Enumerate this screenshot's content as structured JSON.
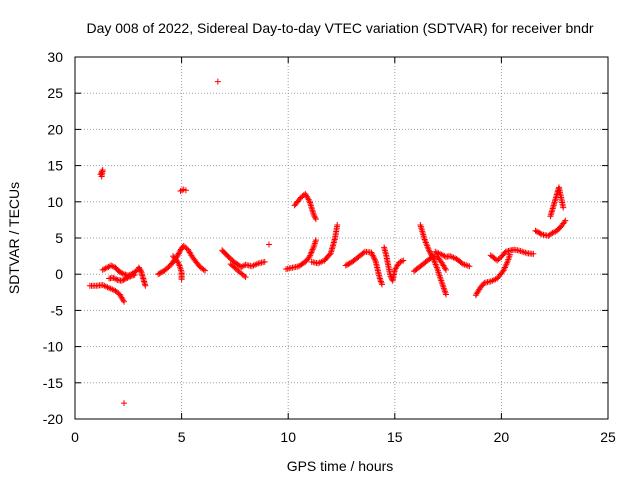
{
  "chart_data": {
    "type": "scatter",
    "title": "Day 008 of 2022, Sidereal Day-to-day VTEC variation (SDTVAR) for receiver bndr",
    "xlabel": "GPS time / hours",
    "ylabel": "SDTVAR / TECUs",
    "xlim": [
      0,
      25
    ],
    "ylim": [
      -20,
      30
    ],
    "xticks": [
      0,
      5,
      10,
      15,
      20,
      25
    ],
    "yticks": [
      -20,
      -15,
      -10,
      -5,
      0,
      5,
      10,
      15,
      20,
      25,
      30
    ],
    "grid": true,
    "marker": "+",
    "color": "#ff0000",
    "segments": [
      {
        "points": [
          [
            0.7,
            -1.6
          ],
          [
            1.0,
            -1.6
          ],
          [
            1.3,
            -1.5
          ],
          [
            1.6,
            -1.9
          ],
          [
            1.9,
            -2.3
          ],
          [
            2.1,
            -2.8
          ],
          [
            2.3,
            -3.8
          ]
        ]
      },
      {
        "points": [
          [
            1.2,
            13.8
          ],
          [
            1.3,
            14.4
          ],
          [
            1.25,
            13.5
          ]
        ]
      },
      {
        "points": [
          [
            1.3,
            0.6
          ],
          [
            1.5,
            0.9
          ],
          [
            1.7,
            1.2
          ],
          [
            1.9,
            0.9
          ],
          [
            2.1,
            0.3
          ],
          [
            2.3,
            0.0
          ],
          [
            2.5,
            -0.2
          ],
          [
            2.7,
            0.1
          ],
          [
            2.9,
            0.5
          ],
          [
            3.0,
            0.9
          ],
          [
            3.1,
            0.4
          ],
          [
            3.2,
            -0.6
          ],
          [
            3.3,
            -1.6
          ]
        ]
      },
      {
        "points": [
          [
            1.6,
            -0.6
          ],
          [
            1.8,
            -0.5
          ],
          [
            2.0,
            -0.8
          ],
          [
            2.2,
            -0.9
          ],
          [
            2.4,
            -0.6
          ],
          [
            2.6,
            -0.3
          ],
          [
            2.8,
            -0.1
          ]
        ]
      },
      {
        "points": [
          [
            2.3,
            -17.8
          ]
        ]
      },
      {
        "points": [
          [
            3.9,
            0.0
          ],
          [
            4.2,
            0.5
          ],
          [
            4.5,
            1.3
          ],
          [
            4.8,
            2.5
          ],
          [
            5.0,
            3.6
          ],
          [
            5.1,
            3.9
          ],
          [
            5.3,
            3.4
          ],
          [
            5.5,
            2.4
          ],
          [
            5.7,
            1.6
          ],
          [
            5.9,
            0.9
          ],
          [
            6.1,
            0.5
          ]
        ]
      },
      {
        "points": [
          [
            4.6,
            2.5
          ],
          [
            4.8,
            1.8
          ],
          [
            4.9,
            1.2
          ],
          [
            5.0,
            0.3
          ],
          [
            5.0,
            -0.7
          ]
        ]
      },
      {
        "points": [
          [
            4.95,
            11.5
          ],
          [
            5.1,
            11.7
          ],
          [
            5.2,
            11.6
          ]
        ]
      },
      {
        "points": [
          [
            6.7,
            26.6
          ]
        ]
      },
      {
        "points": [
          [
            6.9,
            3.3
          ],
          [
            7.2,
            2.4
          ],
          [
            7.5,
            1.6
          ],
          [
            7.8,
            1.0
          ],
          [
            8.0,
            1.3
          ],
          [
            8.3,
            1.1
          ],
          [
            8.6,
            1.5
          ],
          [
            8.9,
            1.7
          ]
        ]
      },
      {
        "points": [
          [
            7.3,
            1.4
          ],
          [
            7.6,
            0.6
          ],
          [
            7.8,
            0.1
          ],
          [
            8.0,
            -0.4
          ]
        ]
      },
      {
        "points": [
          [
            9.1,
            4.1
          ]
        ]
      },
      {
        "points": [
          [
            9.9,
            0.7
          ],
          [
            10.2,
            0.9
          ],
          [
            10.5,
            1.1
          ],
          [
            10.8,
            1.7
          ],
          [
            11.0,
            2.4
          ],
          [
            11.2,
            3.8
          ],
          [
            11.3,
            4.7
          ]
        ]
      },
      {
        "points": [
          [
            10.3,
            9.5
          ],
          [
            10.6,
            10.6
          ],
          [
            10.8,
            11.1
          ],
          [
            11.0,
            10.1
          ],
          [
            11.2,
            8.2
          ],
          [
            11.3,
            7.6
          ]
        ]
      },
      {
        "points": [
          [
            11.1,
            1.7
          ],
          [
            11.4,
            1.5
          ],
          [
            11.7,
            1.9
          ],
          [
            12.0,
            2.9
          ],
          [
            12.2,
            5.0
          ],
          [
            12.3,
            6.8
          ]
        ]
      },
      {
        "points": [
          [
            12.7,
            1.2
          ],
          [
            13.0,
            1.7
          ],
          [
            13.3,
            2.4
          ],
          [
            13.6,
            3.1
          ],
          [
            13.9,
            3.0
          ],
          [
            14.1,
            1.8
          ],
          [
            14.3,
            -0.6
          ],
          [
            14.4,
            -1.4
          ]
        ]
      },
      {
        "points": [
          [
            14.5,
            3.7
          ],
          [
            14.6,
            2.6
          ],
          [
            14.7,
            1.1
          ],
          [
            14.8,
            -0.3
          ],
          [
            14.9,
            -0.9
          ],
          [
            15.0,
            0.6
          ],
          [
            15.2,
            1.6
          ],
          [
            15.4,
            1.9
          ]
        ]
      },
      {
        "points": [
          [
            15.9,
            0.4
          ],
          [
            16.2,
            1.1
          ],
          [
            16.5,
            1.8
          ],
          [
            16.8,
            2.5
          ],
          [
            17.0,
            2.4
          ],
          [
            17.2,
            1.6
          ],
          [
            17.4,
            0.6
          ]
        ]
      },
      {
        "points": [
          [
            16.2,
            6.8
          ],
          [
            16.4,
            4.8
          ],
          [
            16.6,
            3.3
          ],
          [
            16.8,
            2.2
          ],
          [
            17.0,
            0.7
          ],
          [
            17.1,
            -0.2
          ],
          [
            17.2,
            -1.1
          ],
          [
            17.4,
            -2.8
          ]
        ]
      },
      {
        "points": [
          [
            16.9,
            3.1
          ],
          [
            17.2,
            2.7
          ],
          [
            17.4,
            2.4
          ],
          [
            17.6,
            2.5
          ],
          [
            17.9,
            2.1
          ],
          [
            18.2,
            1.4
          ],
          [
            18.5,
            1.1
          ]
        ]
      },
      {
        "points": [
          [
            18.8,
            -2.9
          ],
          [
            19.0,
            -1.9
          ],
          [
            19.2,
            -1.2
          ],
          [
            19.5,
            -1.0
          ],
          [
            19.8,
            -0.6
          ],
          [
            20.1,
            0.5
          ],
          [
            20.3,
            1.8
          ],
          [
            20.4,
            2.7
          ]
        ]
      },
      {
        "points": [
          [
            19.5,
            2.6
          ],
          [
            19.8,
            1.9
          ],
          [
            20.0,
            2.4
          ],
          [
            20.2,
            3.1
          ],
          [
            20.6,
            3.4
          ],
          [
            20.9,
            3.2
          ],
          [
            21.2,
            2.9
          ],
          [
            21.5,
            2.8
          ]
        ]
      },
      {
        "points": [
          [
            21.6,
            6.0
          ],
          [
            21.9,
            5.5
          ],
          [
            22.2,
            5.3
          ],
          [
            22.4,
            5.7
          ],
          [
            22.6,
            6.0
          ],
          [
            22.8,
            6.6
          ],
          [
            23.0,
            7.4
          ]
        ]
      },
      {
        "points": [
          [
            22.3,
            8.0
          ],
          [
            22.45,
            9.5
          ],
          [
            22.6,
            11.0
          ],
          [
            22.7,
            12.0
          ],
          [
            22.8,
            10.6
          ],
          [
            22.9,
            9.2
          ]
        ]
      }
    ]
  }
}
